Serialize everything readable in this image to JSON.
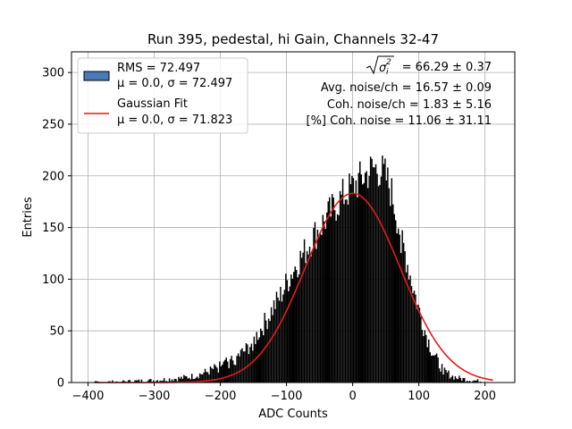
{
  "chart_data": {
    "type": "bar",
    "title": "Run 395, pedestal, hi Gain, Channels 32-47",
    "xlabel": "ADC Counts",
    "ylabel": "Entries",
    "xlim": [
      -425,
      245
    ],
    "ylim": [
      0,
      320
    ],
    "xticks": [
      -400,
      -300,
      -200,
      -100,
      0,
      100,
      200
    ],
    "yticks": [
      0,
      50,
      100,
      150,
      200,
      250,
      300
    ],
    "grid": true,
    "legend_position": "top-left",
    "legend": {
      "hist_line1": "RMS = 72.497",
      "hist_line2": "μ = 0.0, σ = 72.497",
      "fit_line1": "Gaussian Fit",
      "fit_line2": "μ = 0.0, σ = 71.823"
    },
    "annotations": {
      "sigma_value": "= 66.29 ± 0.37",
      "avg_noise": "Avg. noise/ch = 16.57 ± 0.09",
      "coh_noise": "Coh. noise/ch = 1.83 ± 5.16",
      "coh_noise_pct": "[%] Coh. noise = 11.06 ± 31.11"
    },
    "histogram": {
      "bin_start": -390,
      "bin_end": 212,
      "bin_width": 2,
      "profile": [
        [
          -390,
          0
        ],
        [
          -300,
          2
        ],
        [
          -260,
          4
        ],
        [
          -240,
          6
        ],
        [
          -220,
          10
        ],
        [
          -200,
          16
        ],
        [
          -180,
          22
        ],
        [
          -160,
          32
        ],
        [
          -150,
          40
        ],
        [
          -140,
          50
        ],
        [
          -130,
          60
        ],
        [
          -120,
          72
        ],
        [
          -110,
          82
        ],
        [
          -100,
          95
        ],
        [
          -90,
          108
        ],
        [
          -80,
          118
        ],
        [
          -70,
          128
        ],
        [
          -60,
          140
        ],
        [
          -50,
          148
        ],
        [
          -40,
          158
        ],
        [
          -30,
          166
        ],
        [
          -20,
          175
        ],
        [
          -10,
          182
        ],
        [
          0,
          188
        ],
        [
          10,
          194
        ],
        [
          20,
          200
        ],
        [
          30,
          206
        ],
        [
          40,
          205
        ],
        [
          50,
          198
        ],
        [
          60,
          180
        ],
        [
          70,
          150
        ],
        [
          80,
          122
        ],
        [
          90,
          95
        ],
        [
          100,
          70
        ],
        [
          110,
          48
        ],
        [
          120,
          30
        ],
        [
          130,
          18
        ],
        [
          140,
          10
        ],
        [
          150,
          6
        ],
        [
          160,
          4
        ],
        [
          180,
          2
        ],
        [
          200,
          1
        ],
        [
          212,
          0
        ]
      ],
      "color": "#000000"
    },
    "fit": {
      "mu": 0.0,
      "sigma": 71.823,
      "amplitude": 183,
      "x_range": [
        -390,
        212
      ],
      "color": "#e41a1c"
    },
    "hist_legend_color": "#4a7ab5"
  }
}
